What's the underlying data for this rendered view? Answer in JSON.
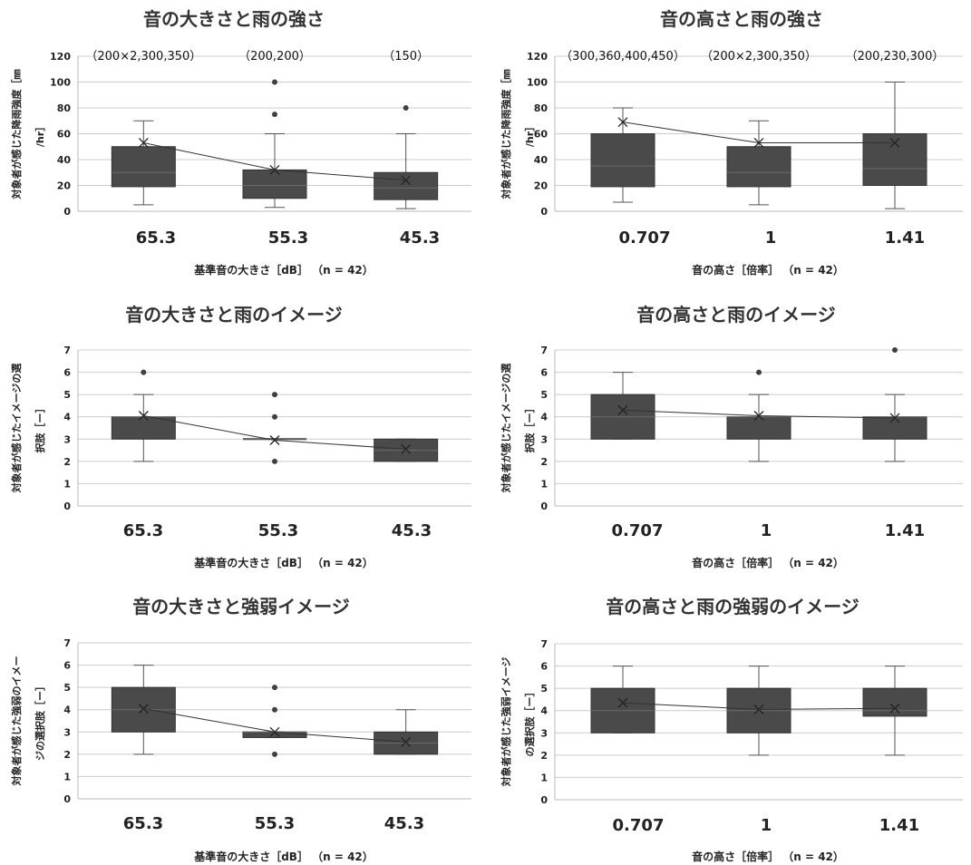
{
  "chart_data": [
    {
      "type": "box",
      "title": "音の大きさと雨の強さ",
      "ylabel": [
        "対象者が感じた降雨強度［㎜",
        "/hr］"
      ],
      "xlabel": "基準音の大きさ［dB］ （n = 42）",
      "ylim": [
        0,
        120
      ],
      "yticks": [
        0,
        20,
        40,
        60,
        80,
        100,
        120
      ],
      "grid": true,
      "categories": [
        "65.3",
        "55.3",
        "45.3"
      ],
      "annotations": [
        "（200×2,300,350）",
        "（200,200）",
        "（150）"
      ],
      "boxes": [
        {
          "min": 5,
          "q1": 19,
          "median": 30,
          "q3": 50,
          "max": 70,
          "mean": 53,
          "outliers": []
        },
        {
          "min": 3,
          "q1": 10,
          "median": 20,
          "q3": 32,
          "max": 60,
          "mean": 32,
          "outliers": [
            75,
            100
          ]
        },
        {
          "min": 2,
          "q1": 9,
          "median": 18,
          "q3": 30,
          "max": 60,
          "mean": 24,
          "outliers": [
            80
          ]
        }
      ]
    },
    {
      "type": "box",
      "title": "音の高さと雨の強さ",
      "ylabel": [
        "対象者が感じた降雨強度［㎜",
        "/hr］"
      ],
      "xlabel": "音の高さ［倍率］ （n = 42）",
      "ylim": [
        0,
        120
      ],
      "yticks": [
        0,
        20,
        40,
        60,
        80,
        100,
        120
      ],
      "grid": true,
      "categories": [
        "0.707",
        "1",
        "1.41"
      ],
      "annotations": [
        "（300,360,400,450）",
        "（200×2,300,350）",
        "（200,230,300）"
      ],
      "boxes": [
        {
          "min": 7,
          "q1": 19,
          "median": 35,
          "q3": 60,
          "max": 80,
          "mean": 69,
          "outliers": []
        },
        {
          "min": 5,
          "q1": 19,
          "median": 30,
          "q3": 50,
          "max": 70,
          "mean": 53,
          "outliers": []
        },
        {
          "min": 2,
          "q1": 20,
          "median": 33,
          "q3": 60,
          "max": 100,
          "mean": 53,
          "outliers": []
        }
      ]
    },
    {
      "type": "box",
      "title": "音の大きさと雨のイメージ",
      "ylabel": [
        "対象者が感じたイメージの選",
        "択肢［ー］"
      ],
      "xlabel": "基準音の大きさ［dB］ （n = 42）",
      "ylim": [
        0,
        7
      ],
      "yticks": [
        0,
        1,
        2,
        3,
        4,
        5,
        6,
        7
      ],
      "grid": true,
      "categories": [
        "65.3",
        "55.3",
        "45.3"
      ],
      "annotations": [],
      "boxes": [
        {
          "min": 2,
          "q1": 3,
          "median": 4,
          "q3": 4,
          "max": 5,
          "mean": 4.05,
          "outliers": [
            6
          ]
        },
        {
          "min": 3,
          "q1": 3,
          "median": 3,
          "q3": 3,
          "max": 3,
          "mean": 2.95,
          "outliers": [
            2,
            4,
            5
          ]
        },
        {
          "min": 2,
          "q1": 2,
          "median": 2.5,
          "q3": 3,
          "max": 3,
          "mean": 2.55,
          "outliers": []
        }
      ]
    },
    {
      "type": "box",
      "title": "音の高さと雨のイメージ",
      "ylabel": [
        "対象者が感じたイメージの選",
        "択肢［ー］"
      ],
      "xlabel": "音の高さ［倍率］ （n = 42）",
      "ylim": [
        0,
        7
      ],
      "yticks": [
        0,
        1,
        2,
        3,
        4,
        5,
        6,
        7
      ],
      "grid": true,
      "categories": [
        "0.707",
        "1",
        "1.41"
      ],
      "annotations": [],
      "boxes": [
        {
          "min": 3,
          "q1": 3,
          "median": 4,
          "q3": 5,
          "max": 6,
          "mean": 4.3,
          "outliers": []
        },
        {
          "min": 2,
          "q1": 3,
          "median": 4,
          "q3": 4,
          "max": 5,
          "mean": 4.05,
          "outliers": [
            6
          ]
        },
        {
          "min": 2,
          "q1": 3,
          "median": 4,
          "q3": 4,
          "max": 5,
          "mean": 3.95,
          "outliers": [
            7
          ]
        }
      ]
    },
    {
      "type": "box",
      "title": "音の大きさと強弱イメージ",
      "ylabel": [
        "対象者が感じた強弱のイメー",
        "ジの選択肢［ー］"
      ],
      "xlabel": "基準音の大きさ［dB］ （n = 42）",
      "ylim": [
        0,
        7
      ],
      "yticks": [
        0,
        1,
        2,
        3,
        4,
        5,
        6,
        7
      ],
      "grid": true,
      "categories": [
        "65.3",
        "55.3",
        "45.3"
      ],
      "annotations": [],
      "boxes": [
        {
          "min": 2,
          "q1": 3,
          "median": 4,
          "q3": 5,
          "max": 6,
          "mean": 4.05,
          "outliers": []
        },
        {
          "min": 2.75,
          "q1": 2.75,
          "median": 3,
          "q3": 3,
          "max": 3,
          "mean": 3.0,
          "outliers": [
            2,
            4,
            5
          ]
        },
        {
          "min": 2,
          "q1": 2,
          "median": 2.5,
          "q3": 3,
          "max": 4,
          "mean": 2.55,
          "outliers": []
        }
      ]
    },
    {
      "type": "box",
      "title": "音の高さと雨の強弱のイメージ",
      "ylabel": [
        "対象者が感じた強弱イメージ",
        "の選択肢［ー］"
      ],
      "xlabel": "音の高さ［倍率］ （n = 42）",
      "ylim": [
        0,
        7
      ],
      "yticks": [
        0,
        1,
        2,
        3,
        4,
        5,
        6,
        7
      ],
      "grid": true,
      "categories": [
        "0.707",
        "1",
        "1.41"
      ],
      "annotations": [],
      "boxes": [
        {
          "min": 3,
          "q1": 3,
          "median": 4,
          "q3": 5,
          "max": 6,
          "mean": 4.35,
          "outliers": []
        },
        {
          "min": 2,
          "q1": 3,
          "median": 4,
          "q3": 5,
          "max": 6,
          "mean": 4.05,
          "outliers": []
        },
        {
          "min": 2,
          "q1": 3.75,
          "median": 4,
          "q3": 5,
          "max": 6,
          "mean": 4.1,
          "outliers": []
        }
      ]
    }
  ],
  "colors": {
    "box_fill": "#4a4a4a",
    "whisker": "#555555",
    "grid": "#cccccc",
    "mean_line": "#333333",
    "outlier": "#404040"
  }
}
